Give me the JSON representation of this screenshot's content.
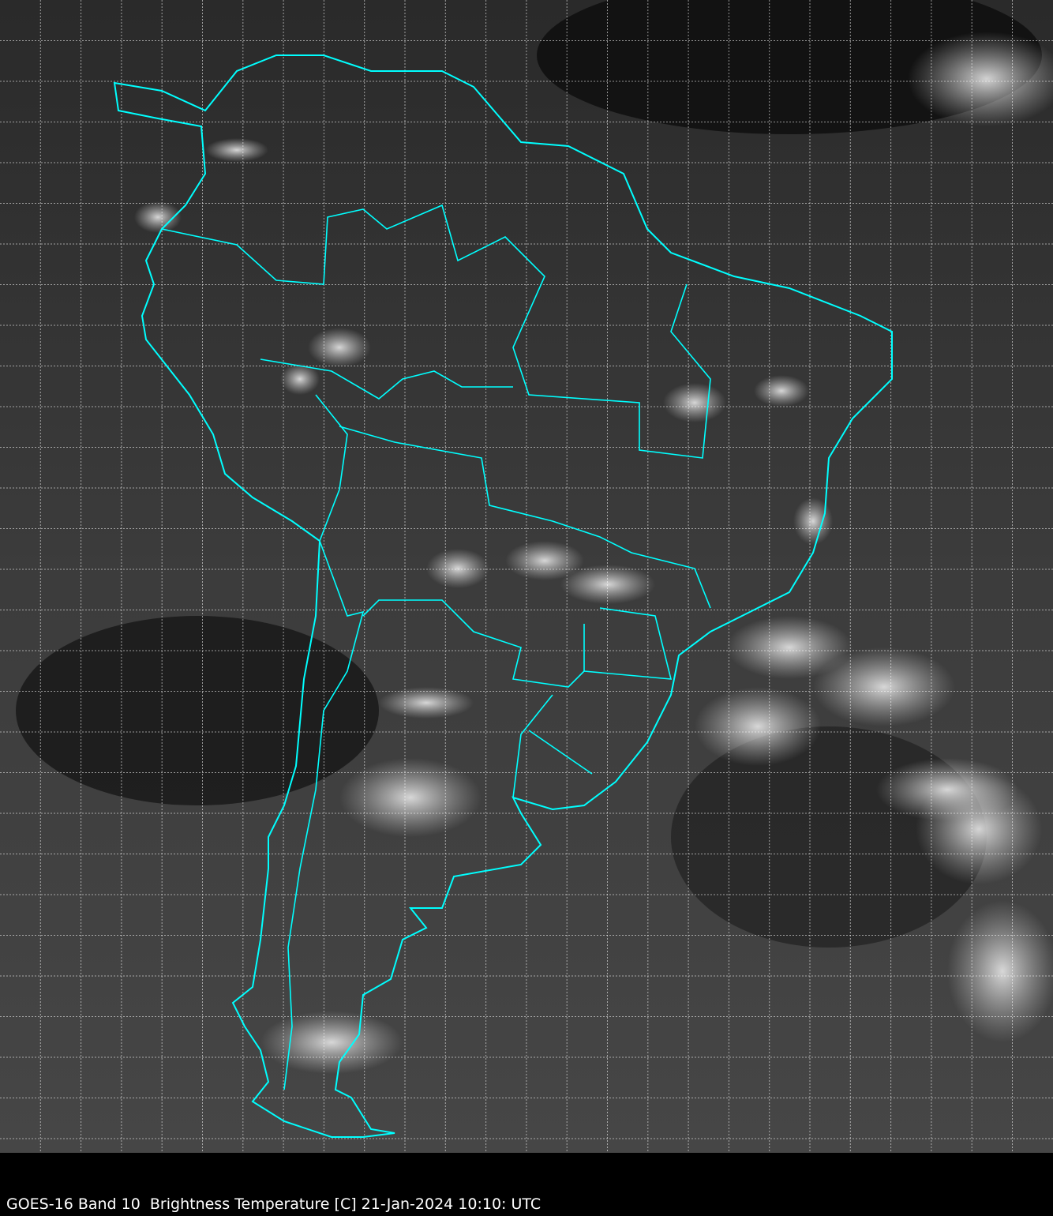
{
  "caption": "GOES-16 Band 10  Brightness Temperature [C] 21-Jan-2024 10:10: UTC",
  "colors": {
    "coastline": "#00ffff",
    "grid": "#ffffff",
    "background": "#000000"
  },
  "map": {
    "region": "South America",
    "grid": true,
    "imagery": "grayscale infrared"
  }
}
